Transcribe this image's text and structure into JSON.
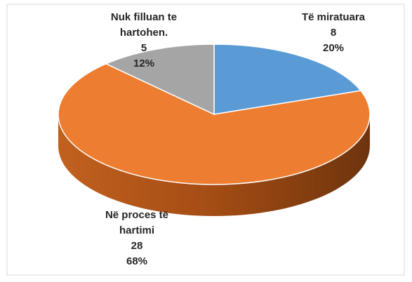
{
  "chart_data": {
    "type": "pie",
    "categories": [
      "Të miratuara",
      "Në proces të hartimi",
      "Nuk filluan te hartohen."
    ],
    "values": [
      8,
      28,
      5
    ],
    "percentages": [
      20,
      68,
      12
    ],
    "percentage_labels": [
      "20%",
      "68%",
      "12%"
    ],
    "colors": [
      "#5b9bd5",
      "#ed7d31",
      "#a5a5a5"
    ]
  }
}
